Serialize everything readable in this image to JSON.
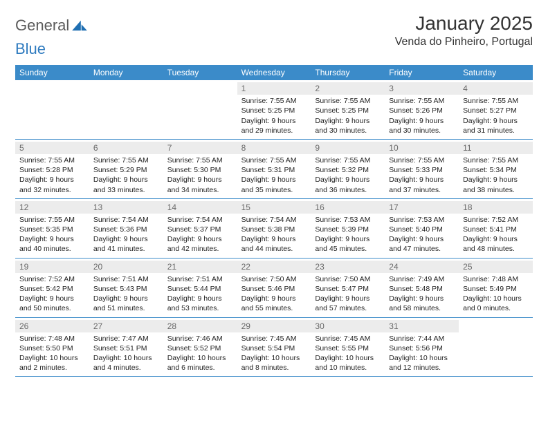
{
  "logo": {
    "part1": "General",
    "part2": "Blue"
  },
  "title": "January 2025",
  "location": "Venda do Pinheiro, Portugal",
  "weekdays": [
    "Sunday",
    "Monday",
    "Tuesday",
    "Wednesday",
    "Thursday",
    "Friday",
    "Saturday"
  ],
  "colors": {
    "header_bg": "#3b8bc9",
    "header_text": "#ffffff",
    "daynum_bg": "#ececec",
    "daynum_text": "#6a6a6a",
    "text": "#222222",
    "rule": "#3b8bc9",
    "logo_gray": "#5a5a5a",
    "logo_blue": "#2f7bbf"
  },
  "typography": {
    "title_fontsize": 28,
    "location_fontsize": 16,
    "weekday_fontsize": 12,
    "daynum_fontsize": 12,
    "body_fontsize": 10.5
  },
  "layout": {
    "columns": 7,
    "rows": 5,
    "first_weekday_index": 3
  },
  "days": [
    {
      "n": 1,
      "sunrise": "7:55 AM",
      "sunset": "5:25 PM",
      "dl_h": 9,
      "dl_m": 29
    },
    {
      "n": 2,
      "sunrise": "7:55 AM",
      "sunset": "5:25 PM",
      "dl_h": 9,
      "dl_m": 30
    },
    {
      "n": 3,
      "sunrise": "7:55 AM",
      "sunset": "5:26 PM",
      "dl_h": 9,
      "dl_m": 30
    },
    {
      "n": 4,
      "sunrise": "7:55 AM",
      "sunset": "5:27 PM",
      "dl_h": 9,
      "dl_m": 31
    },
    {
      "n": 5,
      "sunrise": "7:55 AM",
      "sunset": "5:28 PM",
      "dl_h": 9,
      "dl_m": 32
    },
    {
      "n": 6,
      "sunrise": "7:55 AM",
      "sunset": "5:29 PM",
      "dl_h": 9,
      "dl_m": 33
    },
    {
      "n": 7,
      "sunrise": "7:55 AM",
      "sunset": "5:30 PM",
      "dl_h": 9,
      "dl_m": 34
    },
    {
      "n": 8,
      "sunrise": "7:55 AM",
      "sunset": "5:31 PM",
      "dl_h": 9,
      "dl_m": 35
    },
    {
      "n": 9,
      "sunrise": "7:55 AM",
      "sunset": "5:32 PM",
      "dl_h": 9,
      "dl_m": 36
    },
    {
      "n": 10,
      "sunrise": "7:55 AM",
      "sunset": "5:33 PM",
      "dl_h": 9,
      "dl_m": 37
    },
    {
      "n": 11,
      "sunrise": "7:55 AM",
      "sunset": "5:34 PM",
      "dl_h": 9,
      "dl_m": 38
    },
    {
      "n": 12,
      "sunrise": "7:55 AM",
      "sunset": "5:35 PM",
      "dl_h": 9,
      "dl_m": 40
    },
    {
      "n": 13,
      "sunrise": "7:54 AM",
      "sunset": "5:36 PM",
      "dl_h": 9,
      "dl_m": 41
    },
    {
      "n": 14,
      "sunrise": "7:54 AM",
      "sunset": "5:37 PM",
      "dl_h": 9,
      "dl_m": 42
    },
    {
      "n": 15,
      "sunrise": "7:54 AM",
      "sunset": "5:38 PM",
      "dl_h": 9,
      "dl_m": 44
    },
    {
      "n": 16,
      "sunrise": "7:53 AM",
      "sunset": "5:39 PM",
      "dl_h": 9,
      "dl_m": 45
    },
    {
      "n": 17,
      "sunrise": "7:53 AM",
      "sunset": "5:40 PM",
      "dl_h": 9,
      "dl_m": 47
    },
    {
      "n": 18,
      "sunrise": "7:52 AM",
      "sunset": "5:41 PM",
      "dl_h": 9,
      "dl_m": 48
    },
    {
      "n": 19,
      "sunrise": "7:52 AM",
      "sunset": "5:42 PM",
      "dl_h": 9,
      "dl_m": 50
    },
    {
      "n": 20,
      "sunrise": "7:51 AM",
      "sunset": "5:43 PM",
      "dl_h": 9,
      "dl_m": 51
    },
    {
      "n": 21,
      "sunrise": "7:51 AM",
      "sunset": "5:44 PM",
      "dl_h": 9,
      "dl_m": 53
    },
    {
      "n": 22,
      "sunrise": "7:50 AM",
      "sunset": "5:46 PM",
      "dl_h": 9,
      "dl_m": 55
    },
    {
      "n": 23,
      "sunrise": "7:50 AM",
      "sunset": "5:47 PM",
      "dl_h": 9,
      "dl_m": 57
    },
    {
      "n": 24,
      "sunrise": "7:49 AM",
      "sunset": "5:48 PM",
      "dl_h": 9,
      "dl_m": 58
    },
    {
      "n": 25,
      "sunrise": "7:48 AM",
      "sunset": "5:49 PM",
      "dl_h": 10,
      "dl_m": 0
    },
    {
      "n": 26,
      "sunrise": "7:48 AM",
      "sunset": "5:50 PM",
      "dl_h": 10,
      "dl_m": 2
    },
    {
      "n": 27,
      "sunrise": "7:47 AM",
      "sunset": "5:51 PM",
      "dl_h": 10,
      "dl_m": 4
    },
    {
      "n": 28,
      "sunrise": "7:46 AM",
      "sunset": "5:52 PM",
      "dl_h": 10,
      "dl_m": 6
    },
    {
      "n": 29,
      "sunrise": "7:45 AM",
      "sunset": "5:54 PM",
      "dl_h": 10,
      "dl_m": 8
    },
    {
      "n": 30,
      "sunrise": "7:45 AM",
      "sunset": "5:55 PM",
      "dl_h": 10,
      "dl_m": 10
    },
    {
      "n": 31,
      "sunrise": "7:44 AM",
      "sunset": "5:56 PM",
      "dl_h": 10,
      "dl_m": 12
    }
  ],
  "labels": {
    "sunrise_prefix": "Sunrise: ",
    "sunset_prefix": "Sunset: ",
    "daylight_prefix": "Daylight: ",
    "hours_word": " hours",
    "and_word": "and ",
    "minutes_word": " minutes."
  }
}
